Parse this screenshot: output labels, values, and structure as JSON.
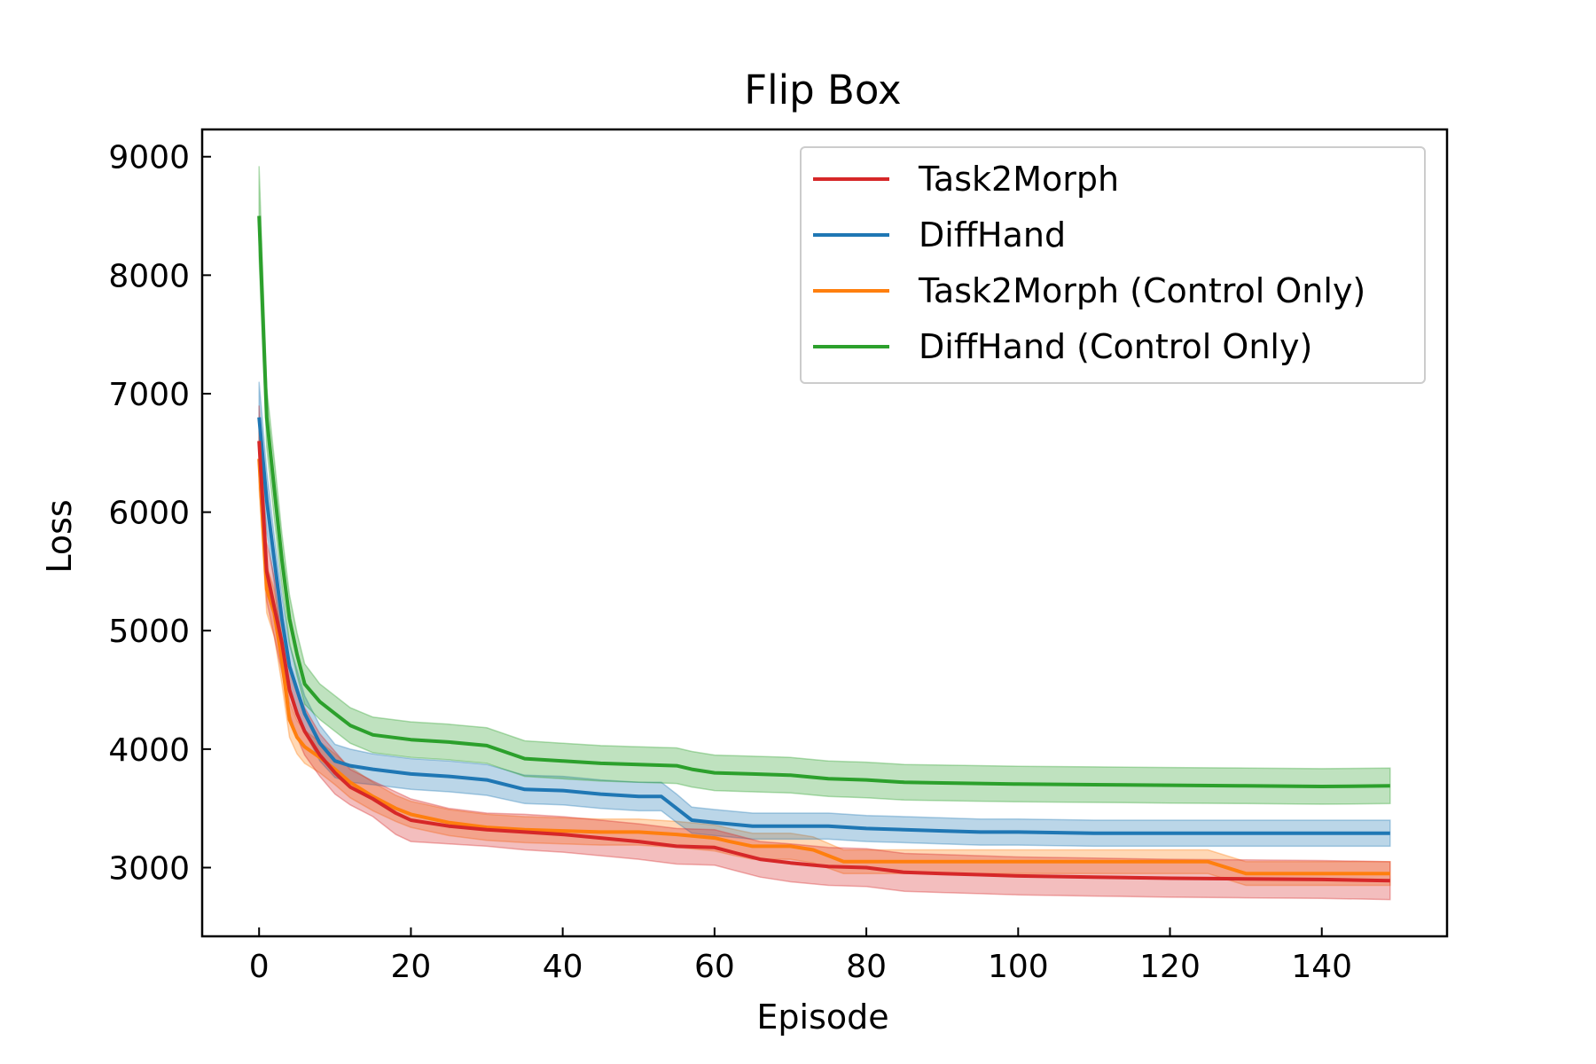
{
  "chart_data": {
    "type": "line",
    "title": "Flip Box",
    "xlabel": "Episode",
    "ylabel": "Loss",
    "xlim": [
      -7.5,
      156.5
    ],
    "ylim": [
      2420,
      9230
    ],
    "xticks": [
      0,
      20,
      40,
      60,
      80,
      100,
      120,
      140
    ],
    "yticks": [
      3000,
      4000,
      5000,
      6000,
      7000,
      8000,
      9000
    ],
    "grid": false,
    "legend_position": "top-right",
    "series": [
      {
        "name": "Task2Morph",
        "color": "#d62728",
        "x": [
          0,
          1,
          2,
          3,
          4,
          5,
          6,
          8,
          10,
          12,
          15,
          18,
          20,
          25,
          30,
          35,
          40,
          45,
          50,
          55,
          60,
          63,
          66,
          70,
          75,
          80,
          85,
          90,
          95,
          100,
          110,
          120,
          130,
          140,
          149
        ],
        "y": [
          6600,
          5500,
          5200,
          4900,
          4500,
          4300,
          4150,
          3950,
          3800,
          3680,
          3580,
          3460,
          3400,
          3350,
          3320,
          3300,
          3280,
          3250,
          3220,
          3180,
          3170,
          3120,
          3070,
          3040,
          3010,
          3000,
          2960,
          2950,
          2940,
          2930,
          2920,
          2910,
          2905,
          2900,
          2890
        ],
        "lower": [
          6300,
          5250,
          4950,
          4650,
          4300,
          4100,
          3950,
          3770,
          3620,
          3530,
          3430,
          3280,
          3220,
          3200,
          3180,
          3150,
          3130,
          3100,
          3070,
          3030,
          3020,
          2970,
          2920,
          2880,
          2850,
          2840,
          2800,
          2790,
          2780,
          2770,
          2760,
          2750,
          2745,
          2740,
          2730
        ],
        "upper": [
          6900,
          5750,
          5450,
          5150,
          4700,
          4500,
          4350,
          4130,
          3980,
          3830,
          3730,
          3640,
          3580,
          3500,
          3460,
          3450,
          3430,
          3400,
          3370,
          3330,
          3320,
          3270,
          3220,
          3200,
          3170,
          3160,
          3120,
          3110,
          3100,
          3090,
          3080,
          3070,
          3065,
          3060,
          3050
        ]
      },
      {
        "name": "DiffHand",
        "color": "#1f77b4",
        "x": [
          0,
          1,
          2,
          3,
          4,
          5,
          6,
          8,
          10,
          12,
          15,
          20,
          25,
          30,
          35,
          40,
          45,
          50,
          53,
          55,
          57,
          60,
          65,
          70,
          75,
          80,
          85,
          90,
          95,
          100,
          110,
          120,
          130,
          140,
          149
        ],
        "y": [
          6800,
          6100,
          5600,
          5100,
          4700,
          4500,
          4300,
          4050,
          3900,
          3860,
          3830,
          3790,
          3770,
          3740,
          3660,
          3650,
          3620,
          3600,
          3600,
          3500,
          3400,
          3380,
          3350,
          3350,
          3350,
          3330,
          3320,
          3310,
          3300,
          3300,
          3290,
          3290,
          3290,
          3290,
          3290
        ],
        "lower": [
          6500,
          5850,
          5400,
          4900,
          4520,
          4330,
          4150,
          3900,
          3760,
          3720,
          3700,
          3660,
          3640,
          3610,
          3540,
          3530,
          3500,
          3480,
          3480,
          3380,
          3290,
          3270,
          3240,
          3240,
          3240,
          3220,
          3210,
          3200,
          3190,
          3190,
          3180,
          3180,
          3180,
          3180,
          3180
        ],
        "upper": [
          7100,
          6350,
          5800,
          5300,
          4880,
          4670,
          4450,
          4200,
          4040,
          4000,
          3960,
          3920,
          3900,
          3870,
          3780,
          3770,
          3740,
          3720,
          3720,
          3620,
          3510,
          3490,
          3460,
          3460,
          3460,
          3440,
          3430,
          3420,
          3410,
          3410,
          3400,
          3400,
          3400,
          3400,
          3400
        ]
      },
      {
        "name": "Task2Morph (Control Only)",
        "color": "#ff7f0e",
        "x": [
          0,
          1,
          2,
          3,
          4,
          5,
          6,
          8,
          10,
          12,
          15,
          18,
          20,
          25,
          30,
          35,
          40,
          45,
          50,
          55,
          60,
          62,
          65,
          70,
          73,
          77,
          80,
          90,
          100,
          110,
          120,
          125,
          130,
          140,
          149
        ],
        "y": [
          6450,
          5350,
          5150,
          4750,
          4250,
          4100,
          4020,
          3930,
          3830,
          3720,
          3600,
          3500,
          3450,
          3380,
          3340,
          3320,
          3310,
          3300,
          3300,
          3280,
          3250,
          3220,
          3180,
          3180,
          3150,
          3050,
          3050,
          3050,
          3050,
          3050,
          3050,
          3050,
          2950,
          2950,
          2950
        ],
        "lower": [
          6200,
          5150,
          4950,
          4550,
          4100,
          3960,
          3880,
          3800,
          3700,
          3590,
          3480,
          3390,
          3340,
          3270,
          3230,
          3210,
          3200,
          3190,
          3190,
          3170,
          3140,
          3110,
          3070,
          3070,
          3040,
          2950,
          2950,
          2950,
          2950,
          2950,
          2950,
          2950,
          2850,
          2850,
          2850
        ],
        "upper": [
          6700,
          5550,
          5350,
          4950,
          4400,
          4240,
          4160,
          4060,
          3960,
          3850,
          3720,
          3610,
          3560,
          3490,
          3450,
          3430,
          3420,
          3410,
          3410,
          3390,
          3360,
          3330,
          3290,
          3290,
          3260,
          3150,
          3150,
          3150,
          3150,
          3150,
          3150,
          3150,
          3050,
          3050,
          3050
        ]
      },
      {
        "name": "DiffHand (Control Only)",
        "color": "#2ca02c",
        "x": [
          0,
          1,
          2,
          3,
          4,
          5,
          6,
          8,
          10,
          12,
          15,
          20,
          25,
          30,
          35,
          40,
          45,
          50,
          55,
          57,
          60,
          65,
          70,
          75,
          80,
          85,
          90,
          100,
          110,
          120,
          130,
          140,
          149
        ],
        "y": [
          8500,
          6800,
          6200,
          5600,
          5100,
          4800,
          4550,
          4400,
          4300,
          4200,
          4120,
          4080,
          4060,
          4030,
          3920,
          3900,
          3880,
          3870,
          3860,
          3830,
          3800,
          3790,
          3780,
          3750,
          3740,
          3720,
          3715,
          3705,
          3700,
          3695,
          3690,
          3685,
          3690
        ],
        "lower": [
          8150,
          6550,
          5950,
          5380,
          4900,
          4620,
          4380,
          4250,
          4150,
          4050,
          3970,
          3930,
          3910,
          3880,
          3770,
          3750,
          3730,
          3720,
          3710,
          3680,
          3650,
          3640,
          3630,
          3600,
          3590,
          3570,
          3565,
          3555,
          3550,
          3545,
          3540,
          3535,
          3540
        ],
        "upper": [
          8920,
          7050,
          6450,
          5820,
          5300,
          4980,
          4720,
          4550,
          4450,
          4350,
          4270,
          4230,
          4210,
          4180,
          4070,
          4050,
          4030,
          4020,
          4010,
          3980,
          3950,
          3940,
          3930,
          3900,
          3890,
          3870,
          3865,
          3855,
          3850,
          3845,
          3840,
          3835,
          3840
        ]
      }
    ]
  }
}
